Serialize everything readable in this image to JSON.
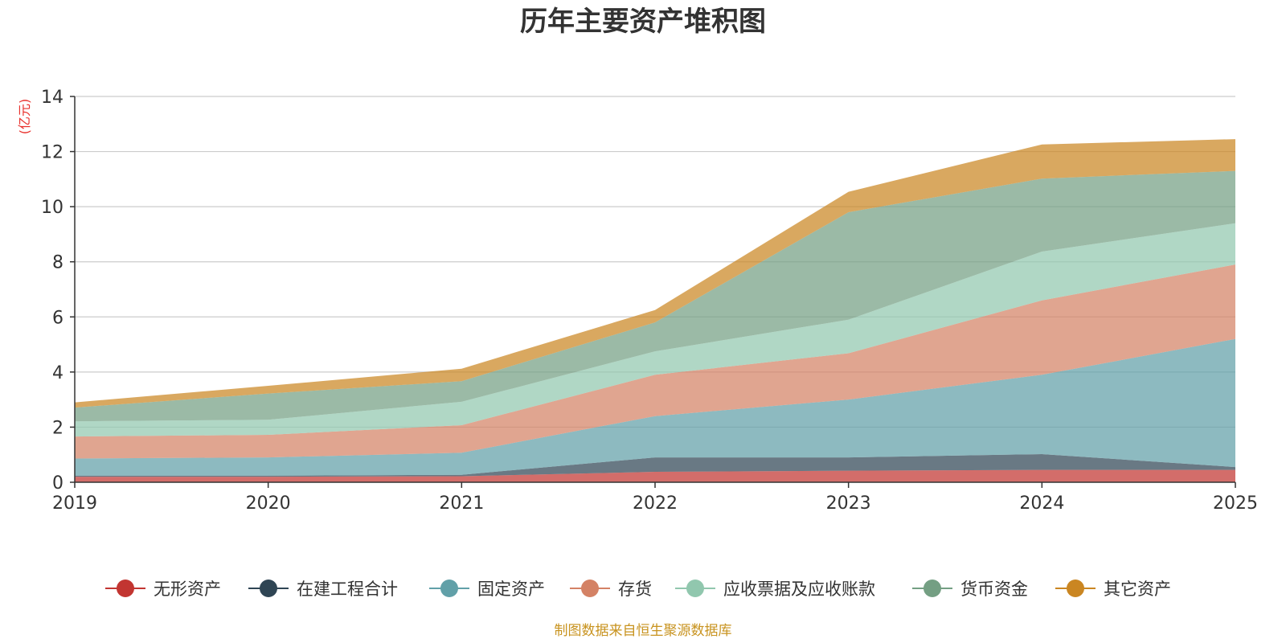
{
  "chart_data": {
    "type": "area",
    "stacked": true,
    "title": "历年主要资产堆积图",
    "ylabel": "(亿元)",
    "xlabel": "",
    "x": [
      "2019",
      "2020",
      "2021",
      "2022",
      "2023",
      "2024",
      "2025"
    ],
    "ylim": [
      0,
      14
    ],
    "yticks": [
      0,
      2,
      4,
      6,
      8,
      10,
      12,
      14
    ],
    "grid": true,
    "legend_position": "bottom",
    "series": [
      {
        "name": "无形资产",
        "color": "#c23531",
        "values": [
          0.2,
          0.2,
          0.22,
          0.38,
          0.42,
          0.45,
          0.45
        ]
      },
      {
        "name": "在建工程合计",
        "color": "#2f4554",
        "values": [
          0.04,
          0.04,
          0.05,
          0.52,
          0.48,
          0.57,
          0.1
        ]
      },
      {
        "name": "固定资产",
        "color": "#61a0a8",
        "values": [
          0.62,
          0.66,
          0.8,
          1.5,
          2.1,
          2.88,
          4.65
        ]
      },
      {
        "name": "存货",
        "color": "#d48265",
        "values": [
          0.8,
          0.82,
          1.0,
          1.5,
          1.68,
          2.7,
          2.7
        ]
      },
      {
        "name": "应收票据及应收账款",
        "color": "#91c7ae",
        "values": [
          0.55,
          0.55,
          0.85,
          0.85,
          1.22,
          1.77,
          1.5
        ]
      },
      {
        "name": "货币资金",
        "color": "#749f83",
        "values": [
          0.5,
          0.95,
          0.75,
          1.05,
          3.9,
          2.65,
          1.9
        ]
      },
      {
        "name": "其它资产",
        "color": "#ca8622",
        "values": [
          0.19,
          0.28,
          0.45,
          0.45,
          0.74,
          1.24,
          1.15
        ]
      }
    ]
  },
  "source_note": "制图数据来自恒生聚源数据库"
}
